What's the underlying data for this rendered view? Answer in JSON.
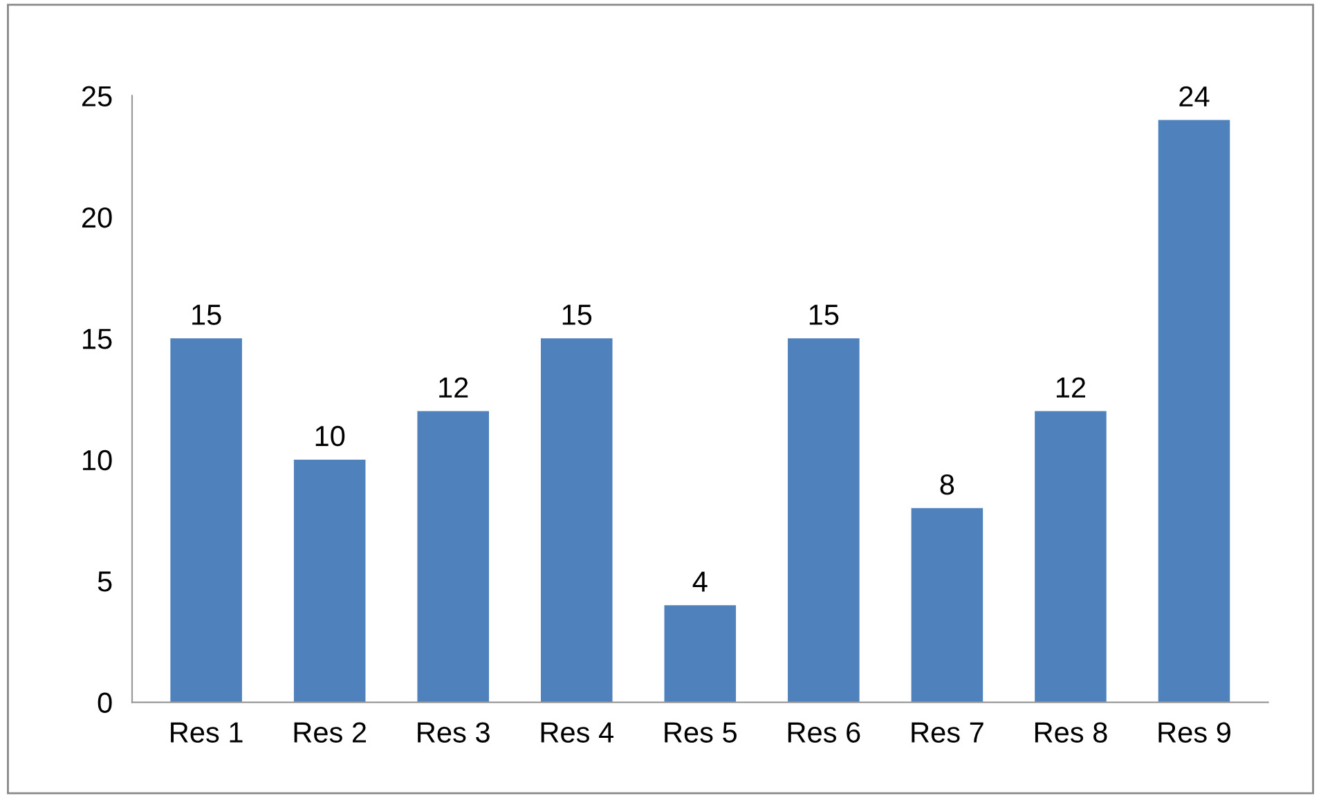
{
  "chart_data": {
    "type": "bar",
    "categories": [
      "Res 1",
      "Res 2",
      "Res 3",
      "Res 4",
      "Res 5",
      "Res 6",
      "Res 7",
      "Res 8",
      "Res 9"
    ],
    "values": [
      15,
      10,
      12,
      15,
      4,
      15,
      8,
      12,
      24
    ],
    "color": "#4f81bd",
    "ylim": [
      0,
      25
    ],
    "yticks": [
      0,
      5,
      10,
      15,
      20,
      25
    ],
    "grid": false,
    "data_labels": true
  }
}
